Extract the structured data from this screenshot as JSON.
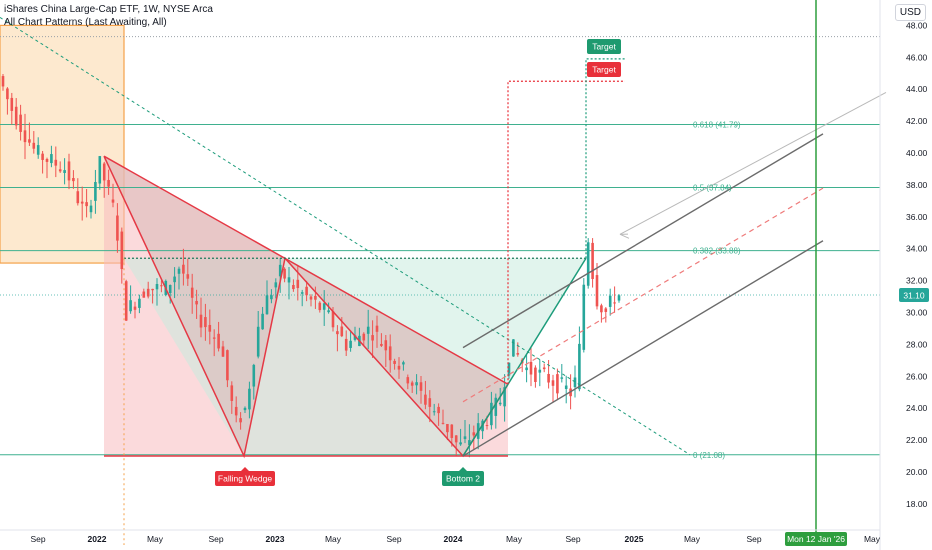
{
  "header": {
    "title": "iShares China Large-Cap ETF, 1W, NYSE Arca",
    "subtitle": "All Chart Patterns (Last Awaiting, All)"
  },
  "currency_button": "USD",
  "current_price_label": "31.10",
  "crosshair_date_label": "Mon 12 Jan '26",
  "colors": {
    "up": "#26a69a",
    "down": "#ef5350",
    "wedge_fill": "#f8bbc0",
    "pattern_line": "#e53945",
    "green_line": "#1d9c7b",
    "fib_line": "#3fb08f",
    "orange": "#f5a14a",
    "channel": "#6b6b6b",
    "vertical_green": "#2e9e3e",
    "label_green": "#1e9a6f",
    "label_red": "#e8303a"
  },
  "annotations": {
    "falling_wedge": "Falling Wedge",
    "bottom": "Bottom 2",
    "target_green": "Target",
    "target_red": "Target",
    "fib_0618": "0.618 (41.79)",
    "fib_05": "0.5 (37.84)",
    "fib_0382": "0.382 (33.88)",
    "fib_0": "0 (21.08)"
  },
  "chart_data": {
    "type": "candlestick",
    "title": "iShares China Large-Cap ETF, 1W, NYSE Arca",
    "y_ticks": [
      "18.00",
      "20.00",
      "22.00",
      "24.00",
      "26.00",
      "28.00",
      "30.00",
      "32.00",
      "34.00",
      "36.00",
      "38.00",
      "40.00",
      "42.00",
      "44.00",
      "46.00",
      "48.00"
    ],
    "ylim": [
      16.8,
      48.5
    ],
    "x_ticks": [
      "Sep",
      "2022",
      "May",
      "Sep",
      "2023",
      "May",
      "Sep",
      "2024",
      "May",
      "Sep",
      "2025",
      "May",
      "Sep",
      "May"
    ],
    "last_price": 31.1,
    "fib_levels": [
      {
        "ratio": "0.618",
        "value": 41.79
      },
      {
        "ratio": "0.5",
        "value": 37.84
      },
      {
        "ratio": "0.382",
        "value": 33.88
      },
      {
        "ratio": "0",
        "value": 21.08
      }
    ],
    "key_prices": {
      "wedge_top": 39.8,
      "wedge_bottom": 21.0,
      "neckline": 33.4,
      "target_green": 45.9,
      "target_red": 44.5
    }
  }
}
